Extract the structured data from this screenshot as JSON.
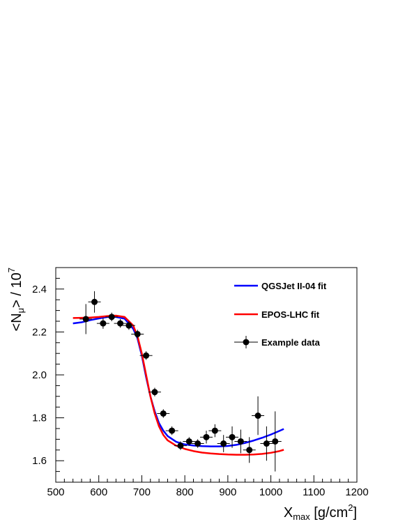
{
  "chart_data": {
    "type": "scatter",
    "xlabel": {
      "main": "X",
      "sub": "max",
      "unit": " [g/cm",
      "sup": "2",
      "close": "]"
    },
    "ylabel": {
      "open": "<N",
      "sub": "μ",
      "mid": "> / 10",
      "sup": "7"
    },
    "xlim": [
      500,
      1200
    ],
    "ylim": [
      1.5,
      2.5
    ],
    "x_ticks": [
      500,
      600,
      700,
      800,
      900,
      1000,
      1100,
      1200
    ],
    "x_tick_labels": [
      "500",
      "600",
      "700",
      "800",
      "900",
      "1000",
      "1100",
      "1200"
    ],
    "y_ticks": [
      1.6,
      1.8,
      2.0,
      2.2,
      2.4
    ],
    "y_tick_labels": [
      "1.6",
      "1.8",
      "2.0",
      "2.2",
      "2.4"
    ],
    "grid": false,
    "legend_position": "top-right",
    "series": [
      {
        "name": "QGSJet II-04 fit",
        "kind": "line",
        "color": "#0000ff",
        "x": [
          540,
          560,
          580,
          600,
          620,
          640,
          660,
          680,
          690,
          700,
          710,
          720,
          730,
          740,
          750,
          760,
          780,
          800,
          820,
          840,
          860,
          880,
          900,
          920,
          940,
          960,
          980,
          1000,
          1020,
          1030
        ],
        "y": [
          2.24,
          2.245,
          2.255,
          2.263,
          2.27,
          2.27,
          2.262,
          2.215,
          2.17,
          2.09,
          1.99,
          1.9,
          1.83,
          1.775,
          1.74,
          1.715,
          1.688,
          1.676,
          1.671,
          1.668,
          1.667,
          1.667,
          1.669,
          1.674,
          1.683,
          1.694,
          1.707,
          1.722,
          1.739,
          1.748
        ]
      },
      {
        "name": "EPOS-LHC fit",
        "kind": "line",
        "color": "#ff0000",
        "x": [
          540,
          560,
          580,
          600,
          620,
          640,
          660,
          680,
          690,
          700,
          710,
          720,
          730,
          740,
          750,
          760,
          780,
          800,
          820,
          840,
          860,
          880,
          900,
          920,
          940,
          960,
          980,
          1000,
          1020,
          1030
        ],
        "y": [
          2.265,
          2.266,
          2.267,
          2.27,
          2.274,
          2.276,
          2.27,
          2.23,
          2.18,
          2.1,
          2.0,
          1.9,
          1.82,
          1.76,
          1.72,
          1.695,
          1.67,
          1.655,
          1.645,
          1.638,
          1.634,
          1.631,
          1.629,
          1.628,
          1.628,
          1.629,
          1.632,
          1.637,
          1.645,
          1.651
        ]
      },
      {
        "name": "Example data",
        "kind": "points",
        "color": "#000000",
        "x": [
          570,
          590,
          610,
          630,
          650,
          670,
          690,
          710,
          730,
          750,
          770,
          790,
          810,
          830,
          850,
          870,
          890,
          910,
          930,
          950,
          970,
          990,
          1010
        ],
        "y": [
          2.26,
          2.34,
          2.24,
          2.27,
          2.24,
          2.23,
          2.19,
          2.09,
          1.92,
          1.82,
          1.74,
          1.67,
          1.69,
          1.68,
          1.71,
          1.74,
          1.68,
          1.71,
          1.69,
          1.65,
          1.81,
          1.68,
          1.69
        ],
        "yerr": [
          0.07,
          0.05,
          0.025,
          0.02,
          0.02,
          0.02,
          0.02,
          0.02,
          0.02,
          0.02,
          0.02,
          0.02,
          0.02,
          0.02,
          0.03,
          0.03,
          0.04,
          0.05,
          0.055,
          0.06,
          0.09,
          0.08,
          0.14
        ]
      }
    ]
  }
}
